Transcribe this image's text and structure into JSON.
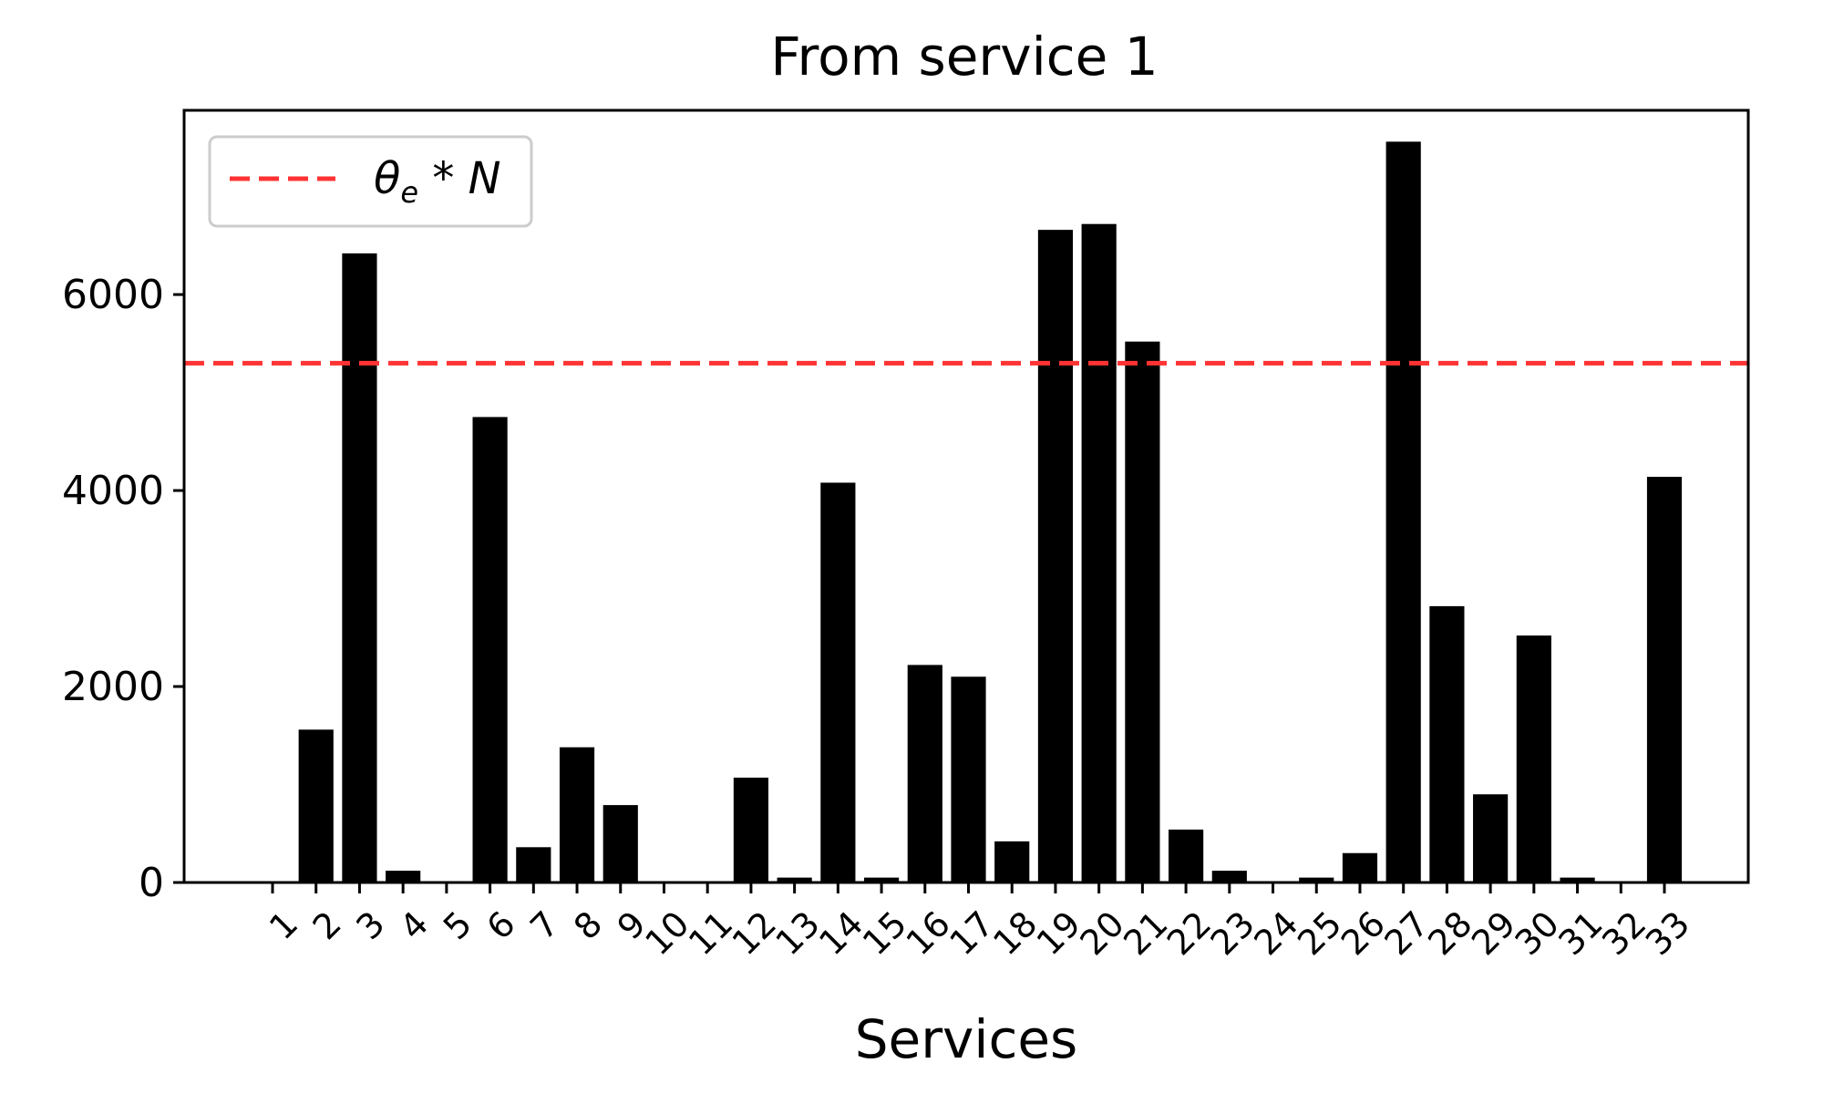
{
  "chart_data": {
    "type": "bar",
    "title": "From service 1",
    "xlabel": "Services",
    "ylabel": "",
    "categories": [
      "1",
      "2",
      "3",
      "4",
      "5",
      "6",
      "7",
      "8",
      "9",
      "10",
      "11",
      "12",
      "13",
      "14",
      "15",
      "16",
      "17",
      "18",
      "19",
      "20",
      "21",
      "22",
      "23",
      "24",
      "25",
      "26",
      "27",
      "28",
      "29",
      "30",
      "31",
      "32",
      "33"
    ],
    "values": [
      0,
      1560,
      6420,
      120,
      0,
      4750,
      360,
      1380,
      790,
      0,
      0,
      1070,
      50,
      4080,
      50,
      2220,
      2100,
      420,
      6660,
      6720,
      5520,
      540,
      120,
      0,
      50,
      300,
      7560,
      2820,
      900,
      2520,
      50,
      0,
      4140
    ],
    "bar_color": "#000000",
    "ylim": [
      0,
      7880
    ],
    "yticks": [
      0,
      2000,
      4000,
      6000
    ],
    "threshold": {
      "value": 5300,
      "label": "θe * N",
      "label_main": "θ",
      "label_sub": "e",
      "label_rest": " * N",
      "color": "#ff3333",
      "style": "dashed"
    },
    "legend_position": "top-left",
    "grid": false
  }
}
